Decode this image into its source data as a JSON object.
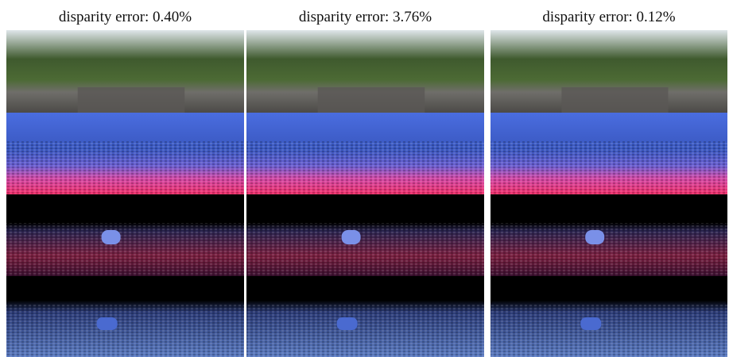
{
  "columns": [
    {
      "title": "disparity error: 0.40%"
    },
    {
      "title": "disparity error: 3.76%"
    },
    {
      "title": "disparity error: 0.12%"
    }
  ]
}
